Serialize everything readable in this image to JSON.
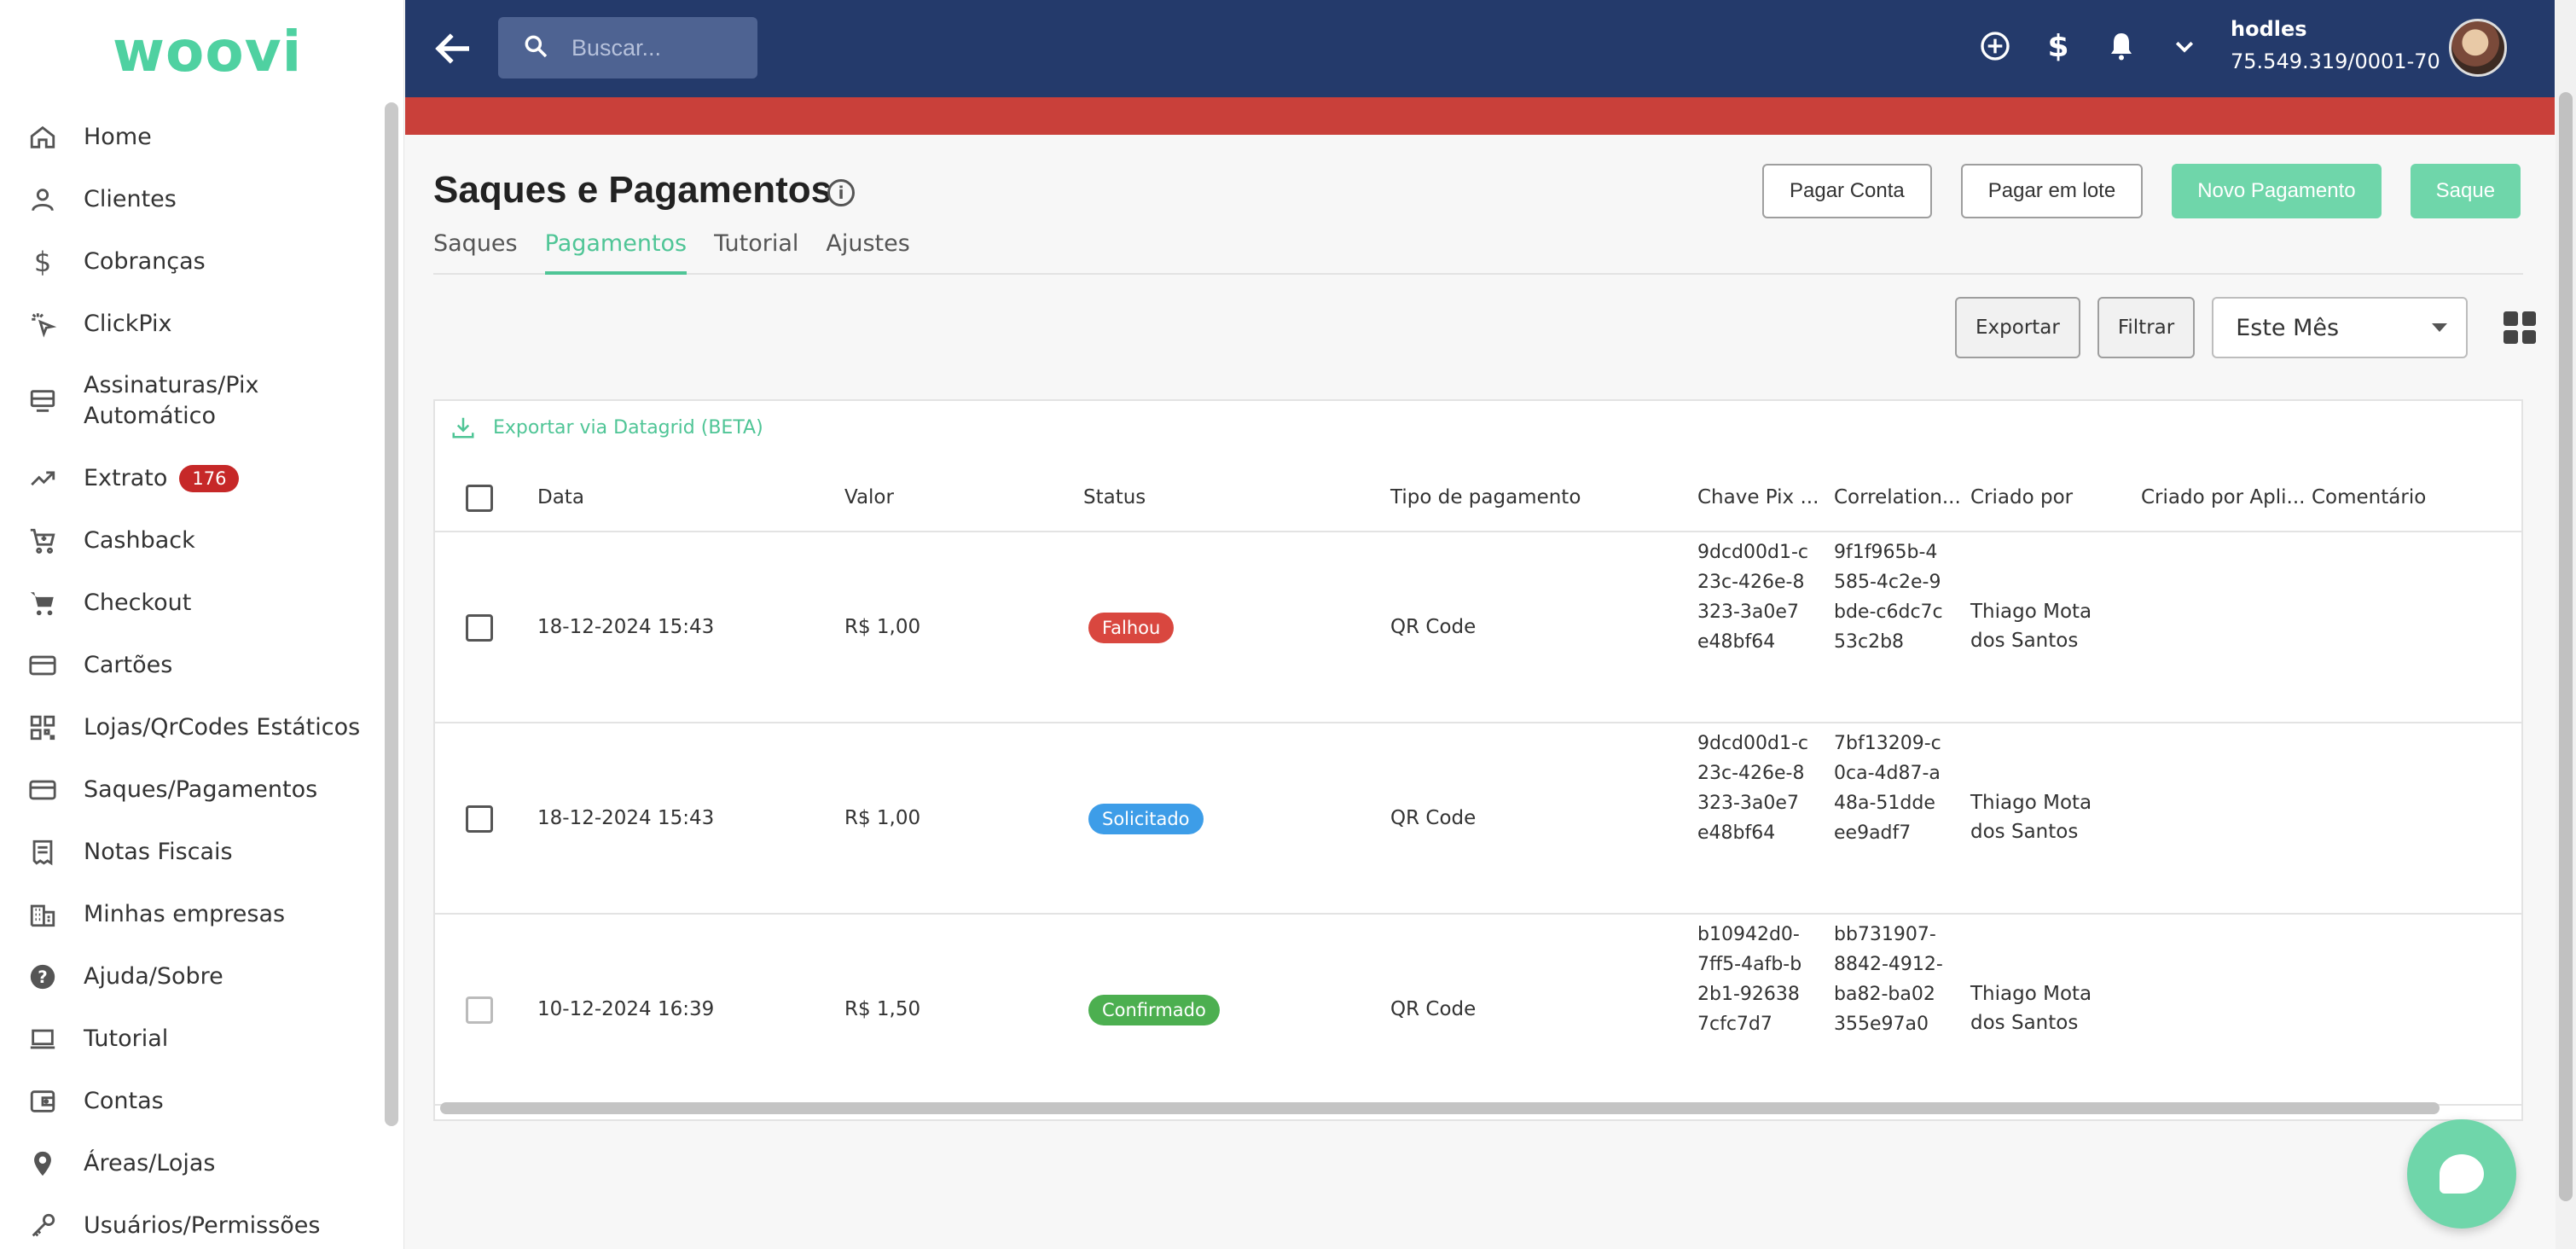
{
  "app": {
    "logo": "woovi"
  },
  "sidebar": {
    "items": [
      {
        "label": "Home",
        "icon": "home-icon",
        "glyph": "⌂"
      },
      {
        "label": "Clientes",
        "icon": "person-icon",
        "glyph": "☺"
      },
      {
        "label": "Cobranças",
        "icon": "dollar-icon",
        "glyph": "$"
      },
      {
        "label": "ClickPix",
        "icon": "click-icon",
        "glyph": "✱"
      },
      {
        "label": "Assinaturas/Pix Automático",
        "icon": "subscription-icon",
        "glyph": "▤"
      },
      {
        "label": "Extrato",
        "icon": "trending-icon",
        "glyph": "↗",
        "badge": "176"
      },
      {
        "label": "Cashback",
        "icon": "cart-plus-icon",
        "glyph": "⛟"
      },
      {
        "label": "Checkout",
        "icon": "cart-icon",
        "glyph": "⛟"
      },
      {
        "label": "Cartões",
        "icon": "card-icon",
        "glyph": "▭"
      },
      {
        "label": "Lojas/QrCodes Estáticos",
        "icon": "qrcode-icon",
        "glyph": "▦"
      },
      {
        "label": "Saques/Pagamentos",
        "icon": "payment-card-icon",
        "glyph": "▭"
      },
      {
        "label": "Notas Fiscais",
        "icon": "receipt-icon",
        "glyph": "▥"
      },
      {
        "label": "Minhas empresas",
        "icon": "building-icon",
        "glyph": "▦"
      },
      {
        "label": "Ajuda/Sobre",
        "icon": "help-icon",
        "glyph": "?"
      },
      {
        "label": "Tutorial",
        "icon": "laptop-icon",
        "glyph": "▭"
      },
      {
        "label": "Contas",
        "icon": "wallet-icon",
        "glyph": "▣"
      },
      {
        "label": "Áreas/Lojas",
        "icon": "location-icon",
        "glyph": "●"
      },
      {
        "label": "Usuários/Permissões",
        "icon": "key-icon",
        "glyph": "⚷"
      }
    ]
  },
  "topbar": {
    "search_placeholder": "Buscar...",
    "user_name": "hodles",
    "user_doc": "75.549.319/0001-70",
    "icons": [
      "add-circle-icon",
      "dollar-icon",
      "bell-icon",
      "chevron-down-icon"
    ]
  },
  "page": {
    "title": "Saques e Pagamentos",
    "buttons": {
      "pay_bill": "Pagar Conta",
      "pay_batch": "Pagar em lote",
      "new_payment": "Novo Pagamento",
      "withdraw": "Saque"
    },
    "tabs": [
      "Saques",
      "Pagamentos",
      "Tutorial",
      "Ajustes"
    ],
    "active_tab": "Pagamentos",
    "toolbar": {
      "export": "Exportar",
      "filter": "Filtrar",
      "period": "Este Mês"
    },
    "export_datagrid": "Exportar via Datagrid (BETA)"
  },
  "table": {
    "columns": [
      "Data",
      "Valor",
      "Status",
      "Tipo de pagamento",
      "Chave Pix ...",
      "Correlation...",
      "Criado por",
      "Criado por Apli...",
      "Comentário"
    ],
    "rows": [
      {
        "date": "18-12-2024 15:43",
        "value": "R$ 1,00",
        "status": "Falhou",
        "status_color": "#d9473f",
        "type": "QR Code",
        "pix_key": "9dcd00d1-c23c-426e-8323-3a0e7e48bf64",
        "correlation": "9f1f965b-4585-4c2e-9bde-c6dc7c53c2b8",
        "created_by": "Thiago Mota dos Santos"
      },
      {
        "date": "18-12-2024 15:43",
        "value": "R$ 1,00",
        "status": "Solicitado",
        "status_color": "#3d9de8",
        "type": "QR Code",
        "pix_key": "9dcd00d1-c23c-426e-8323-3a0e7e48bf64",
        "correlation": "7bf13209-c0ca-4d87-a48a-51ddeee9adf7",
        "created_by": "Thiago Mota dos Santos"
      },
      {
        "date": "10-12-2024 16:39",
        "value": "R$ 1,50",
        "status": "Confirmado",
        "status_color": "#4caf50",
        "type": "QR Code",
        "pix_key": "b10942d0-7ff5-4afb-b2b1-926387cfc7d7",
        "correlation": "bb731907-8842-4912-ba82-ba02355e97a0",
        "created_by": "Thiago Mota dos Santos"
      }
    ]
  }
}
